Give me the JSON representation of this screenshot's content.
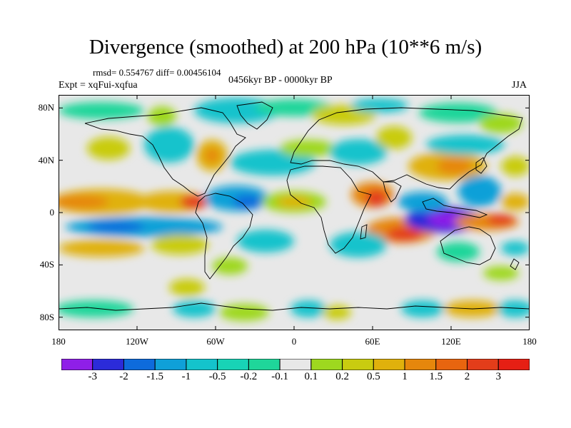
{
  "title": "Divergence (smoothed) at 200 hPa (10**6 m/s)",
  "stats_line": "rmsd= 0.554767 diff= 0.00456104",
  "experiment_label": "Expt = xqFui-xqfua",
  "period_label": "0456kyr BP - 0000kyr BP",
  "season_label": "JJA",
  "map": {
    "projection": "cylindrical equidistant",
    "lon_range": [
      -180,
      180
    ],
    "lat_range": [
      -90,
      90
    ],
    "y_ticks": [
      {
        "label": "80N",
        "lat": 80
      },
      {
        "label": "40N",
        "lat": 40
      },
      {
        "label": "0",
        "lat": 0
      },
      {
        "label": "40S",
        "lat": -40
      },
      {
        "label": "80S",
        "lat": -80
      }
    ],
    "x_ticks": [
      {
        "label": "180",
        "lon": -180
      },
      {
        "label": "120W",
        "lon": -120
      },
      {
        "label": "60W",
        "lon": -60
      },
      {
        "label": "0",
        "lon": 0
      },
      {
        "label": "60E",
        "lon": 60
      },
      {
        "label": "120E",
        "lon": 120
      },
      {
        "label": "180",
        "lon": 180
      }
    ]
  },
  "colorbar": {
    "labels": [
      "-3",
      "-2",
      "-1.5",
      "-1",
      "-0.5",
      "-0.2",
      "-0.1",
      "0.1",
      "0.2",
      "0.5",
      "1",
      "1.5",
      "2",
      "3"
    ],
    "colors": [
      "#8f1fe8",
      "#2b2bd9",
      "#0e6bdc",
      "#0fa0d8",
      "#14c3cc",
      "#18d3b6",
      "#1fd69a",
      "#e8e8e8",
      "#9ed81f",
      "#c9cc10",
      "#e0b10c",
      "#e6870c",
      "#e8650f",
      "#e33d1a",
      "#e61f14"
    ]
  },
  "colors": {
    "land_outline": "#000000",
    "neutral": "#e8e8e8"
  }
}
